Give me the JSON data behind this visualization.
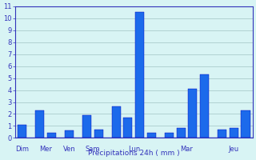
{
  "title": "",
  "xlabel": "Précipitations 24h ( mm )",
  "ylabel": "",
  "background_color": "#d8f4f4",
  "bar_color": "#1c6aeb",
  "bar_edge_color": "#0000bb",
  "grid_color": "#aacccc",
  "axis_color": "#3333bb",
  "text_color": "#3333bb",
  "ylim": [
    0,
    11
  ],
  "yticks": [
    0,
    1,
    2,
    3,
    4,
    5,
    6,
    7,
    8,
    9,
    10,
    11
  ],
  "bars": [
    {
      "value": 1.1,
      "group": "Dim"
    },
    {
      "value": 2.3,
      "group": "Mer"
    },
    {
      "value": 0.4,
      "group": "Mer"
    },
    {
      "value": 0.6,
      "group": "Ven"
    },
    {
      "value": 1.9,
      "group": "Sam"
    },
    {
      "value": 0.7,
      "group": "Sam"
    },
    {
      "value": 2.6,
      "group": "Lun"
    },
    {
      "value": 1.7,
      "group": "Lun"
    },
    {
      "value": 10.5,
      "group": "Lun"
    },
    {
      "value": 0.4,
      "group": "Lun"
    },
    {
      "value": 0.4,
      "group": "Mar"
    },
    {
      "value": 0.8,
      "group": "Mar"
    },
    {
      "value": 4.1,
      "group": "Mar"
    },
    {
      "value": 5.3,
      "group": "Mar"
    },
    {
      "value": 0.7,
      "group": "Jeu"
    },
    {
      "value": 0.8,
      "group": "Jeu"
    },
    {
      "value": 2.3,
      "group": "Jeu"
    }
  ],
  "day_label_positions": {
    "Dim": [
      0
    ],
    "Mer": [
      1,
      2
    ],
    "Ven": [
      3
    ],
    "Sam": [
      4,
      5
    ],
    "Lun": [
      6,
      7,
      8,
      9
    ],
    "Mar": [
      10,
      11,
      12,
      13
    ],
    "Jeu": [
      14,
      15,
      16
    ]
  },
  "day_labels": [
    "Dim",
    "Mer",
    "Ven",
    "Sam",
    "Lun",
    "Mar",
    "Jeu"
  ]
}
